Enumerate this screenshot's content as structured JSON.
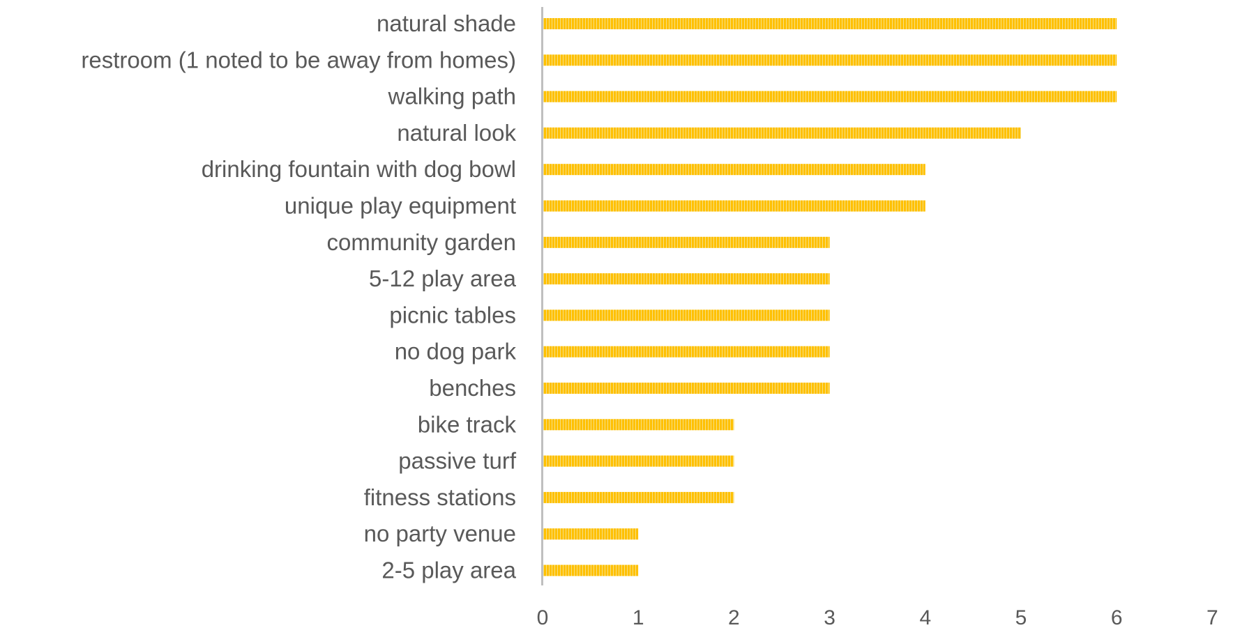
{
  "chart_data": {
    "type": "bar",
    "orientation": "horizontal",
    "title": "",
    "xlabel": "",
    "ylabel": "",
    "categories": [
      "natural shade",
      "restroom (1 noted to be away from homes)",
      "walking path",
      "natural look",
      "drinking fountain with dog bowl",
      "unique play equipment",
      "community garden",
      "5-12 play area",
      "picnic tables",
      "no dog park",
      "benches",
      "bike track",
      "passive turf",
      "fitness stations",
      "no party venue",
      "2-5 play area"
    ],
    "values": [
      6,
      6,
      6,
      5,
      4,
      4,
      3,
      3,
      3,
      3,
      3,
      2,
      2,
      2,
      1,
      1
    ],
    "xlim": [
      0,
      7
    ],
    "xticks": [
      "0",
      "1",
      "2",
      "3",
      "4",
      "5",
      "6",
      "7"
    ],
    "grid": false,
    "legend": "none",
    "bar_color": "#FFC000",
    "bar_pattern": "vertical-stripes",
    "axis_color": "#BFBFBF",
    "text_color": "#595959"
  }
}
